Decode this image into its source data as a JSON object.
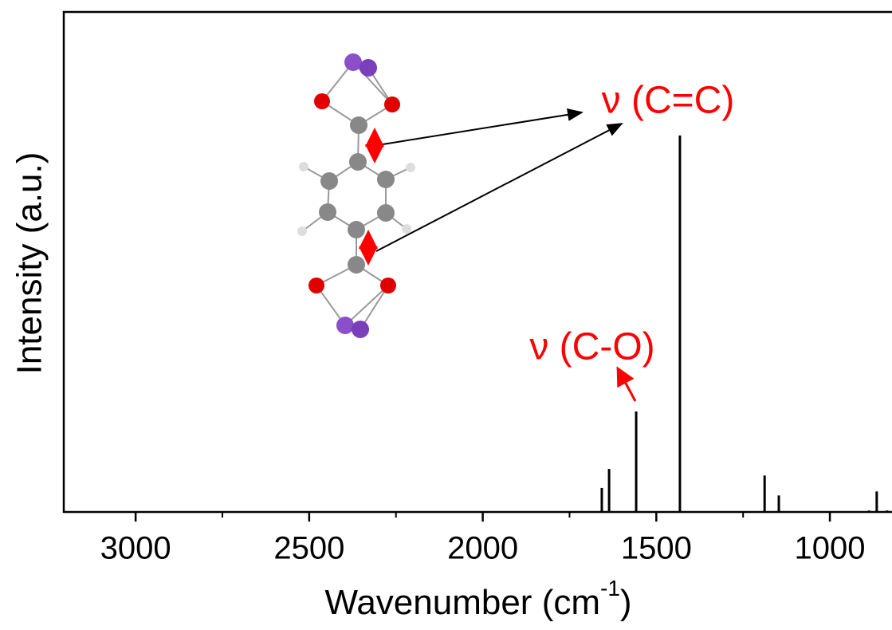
{
  "chart_data": {
    "type": "stick",
    "y_label": "Intensity (a.u.)",
    "x_label": [
      "Wavenumber (cm",
      "-1",
      ")"
    ],
    "annotations": [
      "ν (C=C)",
      "ν (C-O)"
    ],
    "x": [
      1657,
      1636,
      1558,
      1432,
      1188,
      1147,
      887,
      865,
      835
    ],
    "values": [
      4.8,
      8.6,
      20.1,
      75.3,
      7.3,
      3.3,
      0.3,
      4.1,
      0.3
    ],
    "color": "#000000",
    "annotation_color": "#ff0000",
    "xlim": [
      3207,
      821
    ],
    "xticks": [
      3000,
      2500,
      2000,
      1500,
      1000
    ],
    "xminorticks": [
      2750,
      2250,
      1750,
      1250
    ],
    "ylim": [
      0,
      100
    ]
  }
}
